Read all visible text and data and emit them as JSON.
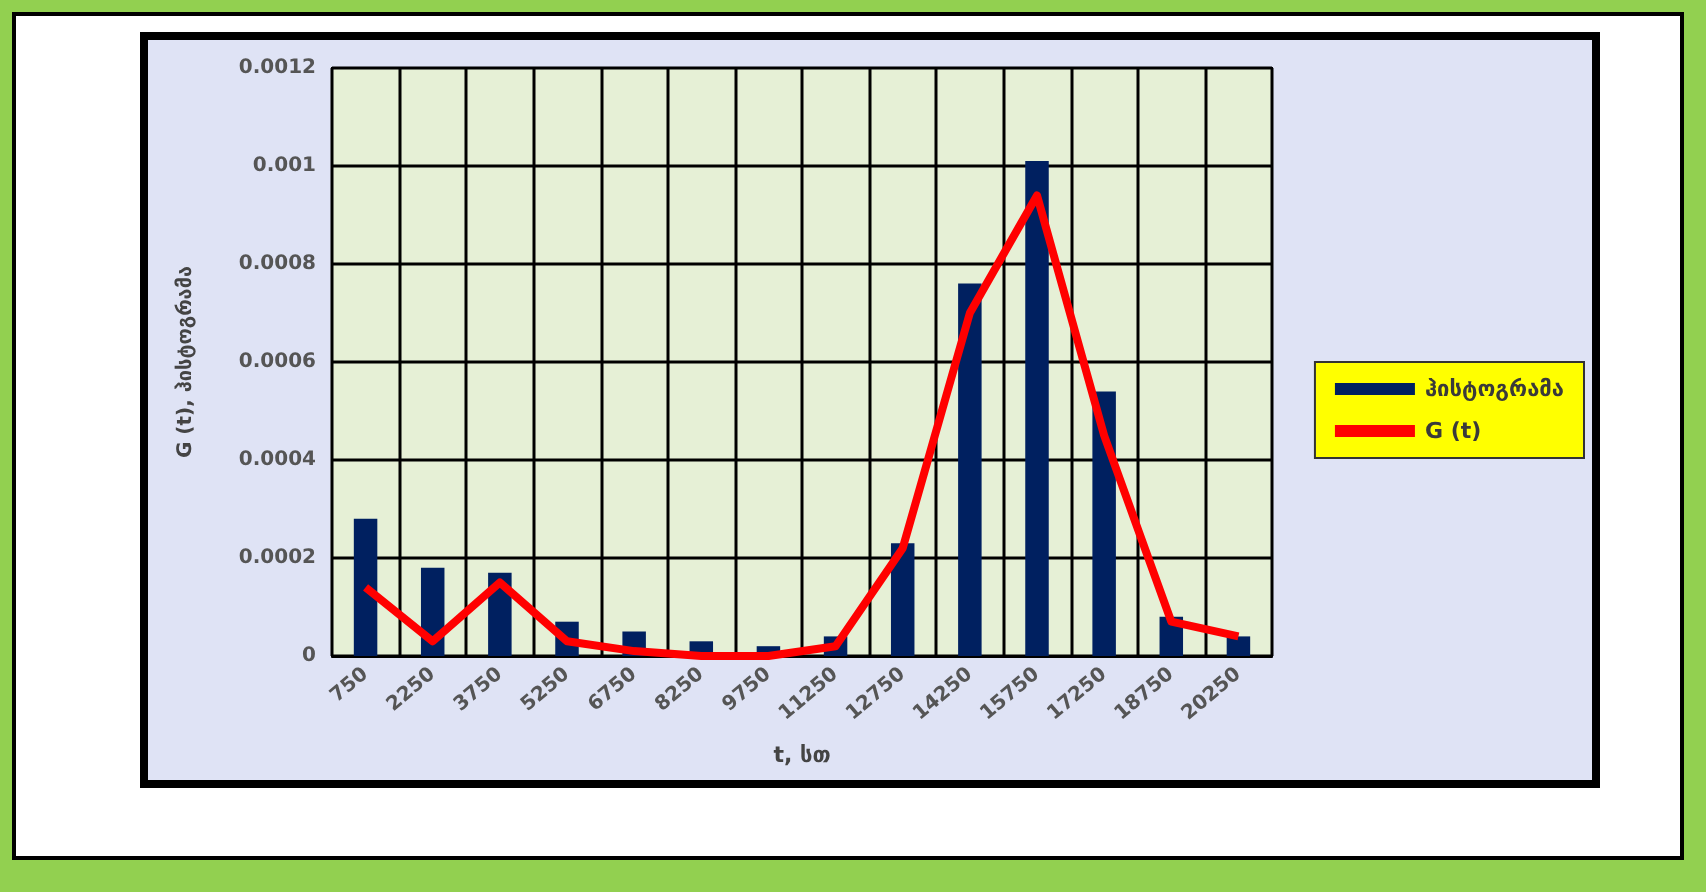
{
  "chart_data": {
    "type": "bar",
    "xlabel": "t, სთ",
    "ylabel": "G (t), ჰისტოგრამა",
    "categories": [
      "750",
      "2250",
      "3750",
      "5250",
      "6750",
      "8250",
      "9750",
      "11250",
      "12750",
      "14250",
      "15750",
      "17250",
      "18750",
      "20250"
    ],
    "series": [
      {
        "name": "ჰისტოგრამა",
        "color": "#002060",
        "values": [
          0.00028,
          0.00018,
          0.00017,
          7e-05,
          5e-05,
          3e-05,
          2e-05,
          4e-05,
          0.00023,
          0.00076,
          0.00101,
          0.00054,
          8e-05,
          4e-05
        ]
      },
      {
        "name": "G (t)",
        "type": "line",
        "color": "#ff0000",
        "values": [
          0.00014,
          3e-05,
          0.00015,
          3e-05,
          1e-05,
          0,
          0,
          2e-05,
          0.00022,
          0.0007,
          0.00094,
          0.00045,
          7e-05,
          4e-05
        ]
      }
    ],
    "ylim": [
      0,
      0.0012
    ],
    "yticks": [
      0,
      0.0002,
      0.0004,
      0.0006,
      0.0008,
      0.001,
      0.0012
    ],
    "grid": true,
    "legend": "right",
    "marker": "none",
    "line_style": "solid"
  }
}
